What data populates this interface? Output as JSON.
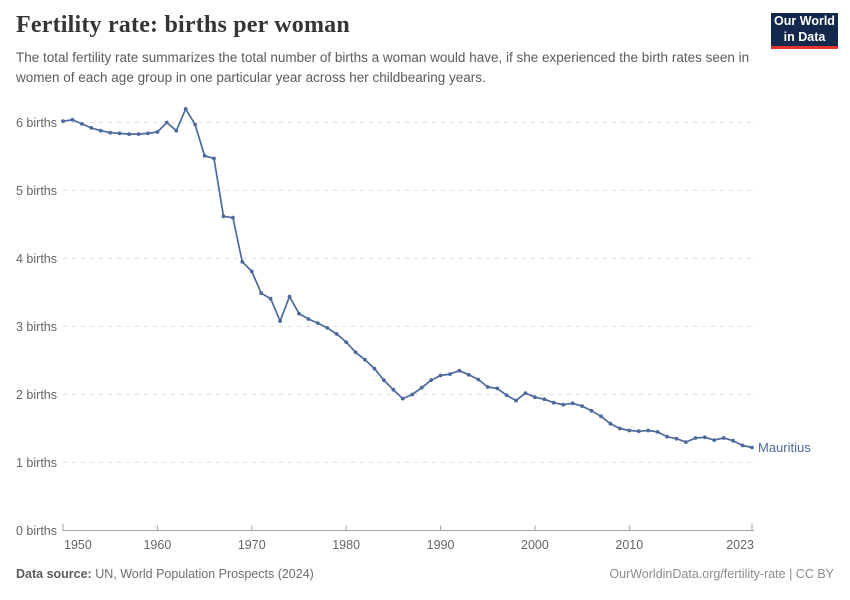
{
  "header": {
    "title": "Fertility rate: births per woman",
    "subtitle": "The total fertility rate summarizes the total number of births a woman would have, if she experienced the birth rates seen in women of each age group in one particular year across her childbearing years."
  },
  "logo": {
    "line1": "Our World",
    "line2": "in Data",
    "bg_color": "#12294d",
    "accent_color": "#e5322a"
  },
  "chart_data": {
    "type": "line",
    "title": "Fertility rate: births per woman",
    "entity": "Mauritius",
    "end_label": "Mauritius",
    "x": [
      1950,
      1951,
      1952,
      1953,
      1954,
      1955,
      1956,
      1957,
      1958,
      1959,
      1960,
      1961,
      1962,
      1963,
      1964,
      1965,
      1966,
      1967,
      1968,
      1969,
      1970,
      1971,
      1972,
      1973,
      1974,
      1975,
      1976,
      1977,
      1978,
      1979,
      1980,
      1981,
      1982,
      1983,
      1984,
      1985,
      1986,
      1987,
      1988,
      1989,
      1990,
      1991,
      1992,
      1993,
      1994,
      1995,
      1996,
      1997,
      1998,
      1999,
      2000,
      2001,
      2002,
      2003,
      2004,
      2005,
      2006,
      2007,
      2008,
      2009,
      2010,
      2011,
      2012,
      2013,
      2014,
      2015,
      2016,
      2017,
      2018,
      2019,
      2020,
      2021,
      2022,
      2023
    ],
    "values": [
      6.02,
      6.04,
      5.98,
      5.92,
      5.88,
      5.85,
      5.84,
      5.83,
      5.83,
      5.84,
      5.86,
      6.0,
      5.88,
      6.2,
      5.97,
      5.51,
      5.47,
      4.62,
      4.6,
      3.95,
      3.81,
      3.49,
      3.41,
      3.08,
      3.44,
      3.19,
      3.11,
      3.05,
      2.98,
      2.89,
      2.77,
      2.62,
      2.51,
      2.38,
      2.21,
      2.07,
      1.94,
      2.0,
      2.1,
      2.21,
      2.28,
      2.3,
      2.35,
      2.29,
      2.22,
      2.11,
      2.09,
      1.99,
      1.91,
      2.02,
      1.96,
      1.93,
      1.88,
      1.85,
      1.87,
      1.83,
      1.76,
      1.68,
      1.57,
      1.5,
      1.47,
      1.46,
      1.47,
      1.45,
      1.38,
      1.35,
      1.3,
      1.36,
      1.37,
      1.33,
      1.36,
      1.32,
      1.25,
      1.22
    ],
    "x_ticks": [
      1950,
      1960,
      1970,
      1980,
      1990,
      2000,
      2010,
      2023
    ],
    "y_ticks": [
      0,
      1,
      2,
      3,
      4,
      5,
      6
    ],
    "y_tick_suffix": " births",
    "xlim": [
      1950,
      2023
    ],
    "ylim": [
      0,
      6.3
    ],
    "grid": "horizontal-dashed",
    "line_color": "#4c6a9c",
    "grid_color": "#e0e0e0",
    "axis_color": "#a1a1a1",
    "tick_label_color": "#666666"
  },
  "footer": {
    "source_label": "Data source:",
    "source_text": " UN, World Population Prospects (2024)",
    "credit": "OurWorldinData.org/fertility-rate | CC BY"
  }
}
